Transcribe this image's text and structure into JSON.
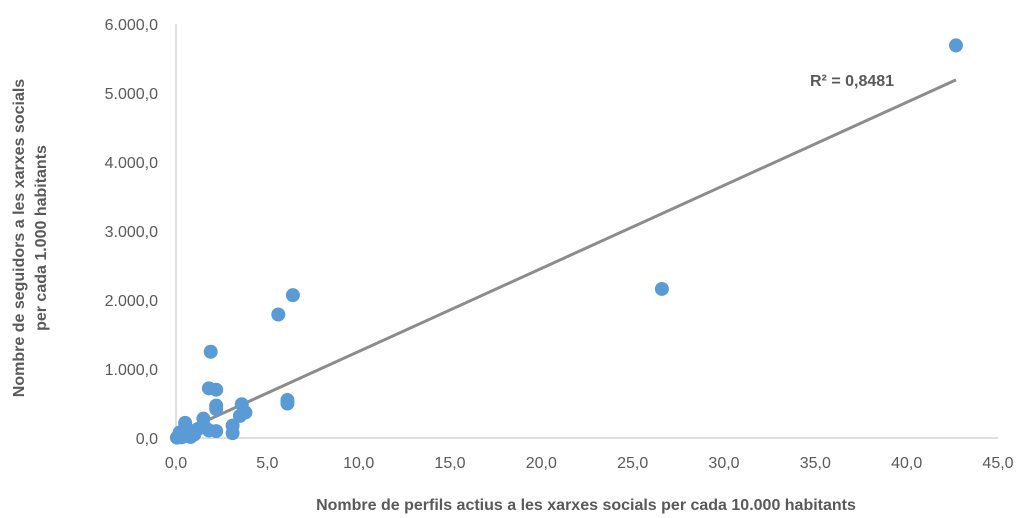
{
  "chart_data": {
    "type": "scatter",
    "title": "",
    "xlabel": "Nombre de perfils actius a les xarxes socials per cada 10.000 habitants",
    "ylabel_lines": [
      "Nombre de seguidors a les xarxes socials",
      "per cada 1.000 habitants"
    ],
    "xlim": [
      0,
      45
    ],
    "ylim": [
      0,
      6000
    ],
    "x_ticks": [
      {
        "value": 0,
        "label": "0,0"
      },
      {
        "value": 5,
        "label": "5,0"
      },
      {
        "value": 10,
        "label": "10,0"
      },
      {
        "value": 15,
        "label": "15,0"
      },
      {
        "value": 20,
        "label": "20,0"
      },
      {
        "value": 25,
        "label": "25,0"
      },
      {
        "value": 30,
        "label": "30,0"
      },
      {
        "value": 35,
        "label": "35,0"
      },
      {
        "value": 40,
        "label": "40,0"
      },
      {
        "value": 45,
        "label": "45,0"
      }
    ],
    "y_ticks": [
      {
        "value": 0,
        "label": "0,0"
      },
      {
        "value": 1000,
        "label": "1.000,0"
      },
      {
        "value": 2000,
        "label": "2.000,0"
      },
      {
        "value": 3000,
        "label": "3.000,0"
      },
      {
        "value": 4000,
        "label": "4.000,0"
      },
      {
        "value": 5000,
        "label": "5.000,0"
      },
      {
        "value": 6000,
        "label": "6.000,0"
      }
    ],
    "grid": false,
    "legend": "none",
    "colors": {
      "points": "#5B9BD5",
      "trendline": "#8C8C8C",
      "axis": "#BFBFBF",
      "text": "#595959"
    },
    "points": [
      {
        "x": 42.7,
        "y": 5690
      },
      {
        "x": 26.6,
        "y": 2160
      },
      {
        "x": 6.4,
        "y": 2070
      },
      {
        "x": 5.6,
        "y": 1790
      },
      {
        "x": 1.9,
        "y": 1250
      },
      {
        "x": 1.8,
        "y": 720
      },
      {
        "x": 2.2,
        "y": 700
      },
      {
        "x": 6.1,
        "y": 550
      },
      {
        "x": 6.1,
        "y": 500
      },
      {
        "x": 3.6,
        "y": 490
      },
      {
        "x": 2.2,
        "y": 470
      },
      {
        "x": 2.2,
        "y": 420
      },
      {
        "x": 3.8,
        "y": 370
      },
      {
        "x": 3.5,
        "y": 320
      },
      {
        "x": 1.5,
        "y": 280
      },
      {
        "x": 0.5,
        "y": 220
      },
      {
        "x": 3.1,
        "y": 180
      },
      {
        "x": 1.6,
        "y": 150
      },
      {
        "x": 1.2,
        "y": 130
      },
      {
        "x": 2.2,
        "y": 100
      },
      {
        "x": 1.8,
        "y": 110
      },
      {
        "x": 3.1,
        "y": 70
      },
      {
        "x": 0.9,
        "y": 100
      },
      {
        "x": 0.2,
        "y": 80
      },
      {
        "x": 0.7,
        "y": 60
      },
      {
        "x": 1.0,
        "y": 50
      },
      {
        "x": 0.4,
        "y": 40
      },
      {
        "x": 0.6,
        "y": 30
      },
      {
        "x": 0.1,
        "y": 20
      },
      {
        "x": 0.3,
        "y": 10
      },
      {
        "x": 0.8,
        "y": 15
      },
      {
        "x": 0.05,
        "y": 5
      }
    ],
    "trendline": {
      "type": "linear",
      "start": {
        "x": 0,
        "y": 50
      },
      "end": {
        "x": 42.7,
        "y": 5190
      }
    },
    "annotation": "R² = 0,8481"
  }
}
